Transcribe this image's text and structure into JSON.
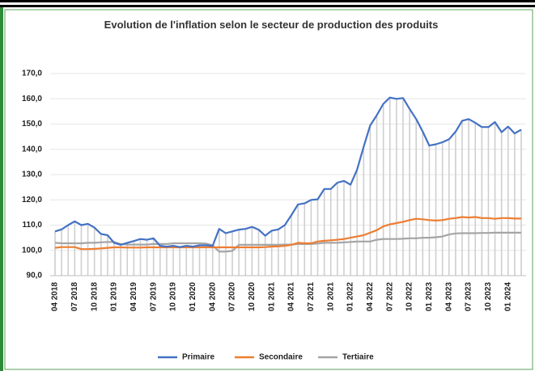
{
  "chart_data": {
    "type": "line",
    "title": "Evolution de l'inflation selon le secteur de production des produits",
    "categories": [
      "04 2018",
      null,
      null,
      "07 2018",
      null,
      null,
      "10 2018",
      null,
      null,
      "01 2019",
      null,
      null,
      "04 2019",
      null,
      null,
      "07 2019",
      null,
      null,
      "10 2019",
      null,
      null,
      "01 2020",
      null,
      null,
      "04 2020",
      null,
      null,
      "07 2020",
      null,
      null,
      "10 2020",
      null,
      null,
      "01 2021",
      null,
      null,
      "04 2021",
      null,
      null,
      "07 2021",
      null,
      null,
      "10 2021",
      null,
      null,
      "01 2022",
      null,
      null,
      "04 2022",
      null,
      null,
      "07 2022",
      null,
      null,
      "10 2022",
      null,
      null,
      "01 2023",
      null,
      null,
      "04 2023",
      null,
      null,
      "07 2023",
      null,
      null,
      "10 2023",
      null,
      null,
      "01 2024",
      null,
      null
    ],
    "series": [
      {
        "name": "Primaire",
        "color": "#4472c4",
        "values": [
          107.5,
          108.3,
          110,
          111.5,
          110,
          110.5,
          109,
          106.5,
          106,
          103,
          102.2,
          103,
          103.7,
          104.5,
          104.2,
          104.8,
          101.8,
          101.5,
          101.8,
          101.3,
          101.8,
          101.5,
          102,
          102,
          101.8,
          108.5,
          106.8,
          107.5,
          108.2,
          108.5,
          109.3,
          108.2,
          105.8,
          107.8,
          108.3,
          110,
          114,
          118.2,
          118.6,
          120,
          120.2,
          124.3,
          124.3,
          126.8,
          127.5,
          126,
          132,
          141,
          149.5,
          153.5,
          158,
          160.5,
          160,
          160.3,
          156,
          152,
          147,
          141.5,
          142,
          142.8,
          144,
          147,
          151.3,
          152,
          150.5,
          148.8,
          148.8,
          150.8,
          146.8,
          149,
          146.3,
          147.8
        ]
      },
      {
        "name": "Secondaire",
        "color": "#ed7d31",
        "values": [
          101,
          101.3,
          101.3,
          101.3,
          100.5,
          100.5,
          100.6,
          100.8,
          101,
          101.2,
          101.2,
          101.1,
          101.1,
          101.1,
          101.2,
          101.2,
          101.2,
          101.2,
          101.2,
          101.2,
          101.2,
          101.2,
          101.2,
          101.2,
          101.2,
          101.2,
          101.2,
          101.2,
          101.2,
          101.2,
          101.2,
          101.2,
          101.3,
          101.5,
          101.6,
          101.8,
          102.2,
          103,
          102.8,
          102.8,
          103.5,
          103.8,
          104,
          104.2,
          104.5,
          105,
          105.5,
          106,
          107,
          108,
          109.5,
          110.3,
          110.8,
          111.3,
          112,
          112.5,
          112.3,
          112,
          111.8,
          112,
          112.5,
          112.8,
          113.2,
          113,
          113.2,
          112.8,
          112.8,
          112.5,
          112.8,
          112.8,
          112.6,
          112.6
        ]
      },
      {
        "name": "Tertiaire",
        "color": "#a5a5a5",
        "values": [
          103,
          102.8,
          102.8,
          102.8,
          102.8,
          103,
          103,
          103.2,
          103.3,
          103.3,
          102.5,
          102.3,
          102.3,
          102.3,
          102.3,
          102.5,
          102.5,
          102.5,
          102.8,
          102.8,
          102.8,
          102.8,
          102.8,
          102.7,
          102,
          99.5,
          99.5,
          99.8,
          102.2,
          102.2,
          102.2,
          102.2,
          102.2,
          102.2,
          102.2,
          102.3,
          102.3,
          102.5,
          102.5,
          102.5,
          102.7,
          103,
          103,
          103,
          103.2,
          103.3,
          103.5,
          103.5,
          103.5,
          104.2,
          104.5,
          104.5,
          104.5,
          104.6,
          104.8,
          104.8,
          105,
          105,
          105.2,
          105.5,
          106.3,
          106.7,
          106.8,
          106.8,
          106.8,
          106.9,
          106.9,
          107,
          107,
          107,
          107,
          107
        ]
      }
    ],
    "ylim": [
      90,
      170
    ],
    "yticks": [
      {
        "value": 90,
        "label": "90,0"
      },
      {
        "value": 100,
        "label": "100,0"
      },
      {
        "value": 110,
        "label": "110,0"
      },
      {
        "value": 120,
        "label": "120,0"
      },
      {
        "value": 130,
        "label": "130,0"
      },
      {
        "value": 140,
        "label": "140,0"
      },
      {
        "value": 150,
        "label": "150,0"
      },
      {
        "value": 160,
        "label": "160,0"
      },
      {
        "value": 170,
        "label": "170,0"
      }
    ],
    "drop_lines": true,
    "legend": "bottom"
  }
}
